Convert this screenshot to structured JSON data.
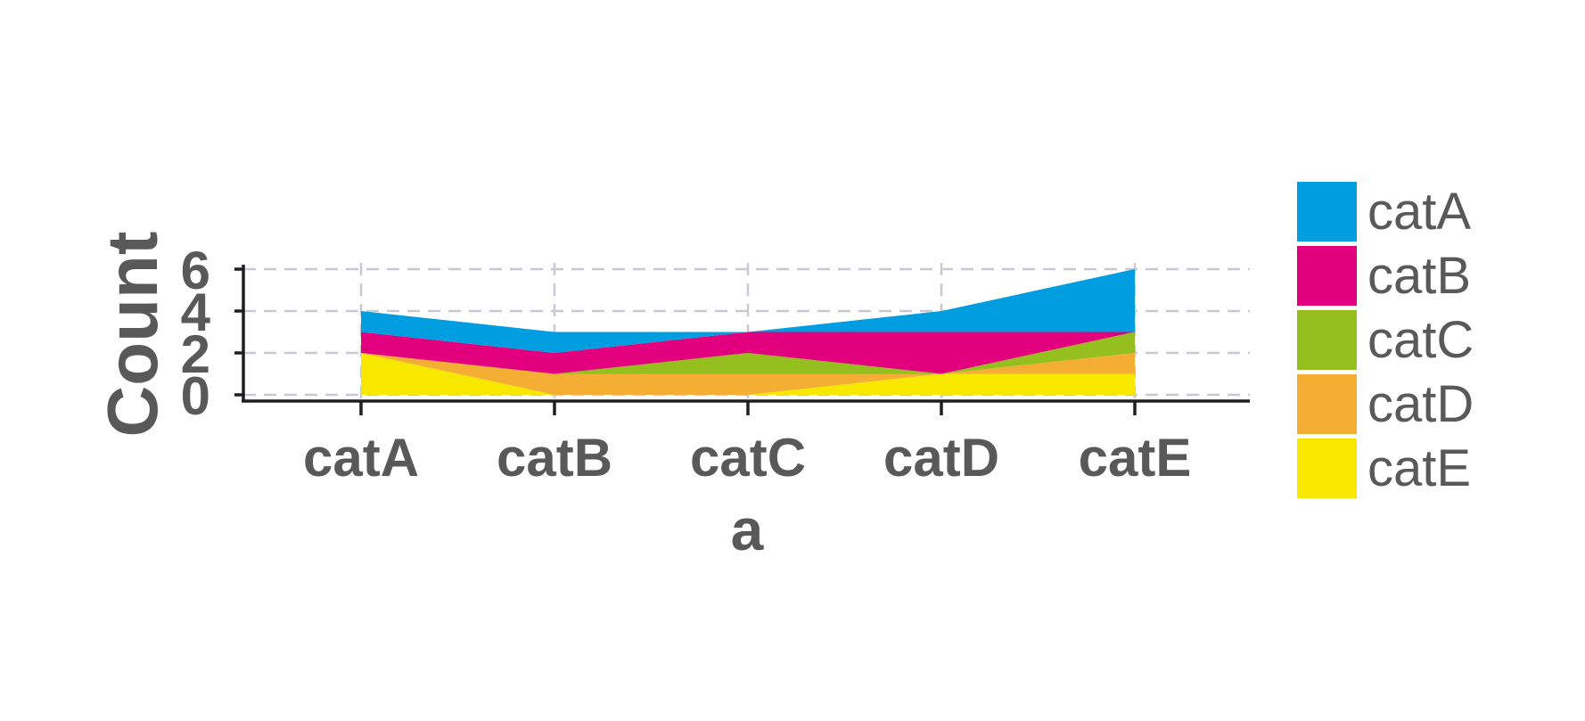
{
  "chart_data": {
    "type": "area",
    "stacked": true,
    "title": "",
    "xlabel": "a",
    "ylabel": "Count",
    "categories": [
      "catA",
      "catB",
      "catC",
      "catD",
      "catE"
    ],
    "y_ticks": [
      0,
      2,
      4,
      6
    ],
    "ylim": [
      0,
      6
    ],
    "grid": true,
    "legend_position": "right",
    "series": [
      {
        "name": "catE",
        "color": "#F8E800",
        "values": [
          2,
          0,
          0,
          1,
          1
        ]
      },
      {
        "name": "catD",
        "color": "#F5AE34",
        "values": [
          0,
          1,
          1,
          0,
          1
        ]
      },
      {
        "name": "catC",
        "color": "#95BF1E",
        "values": [
          0,
          0,
          1,
          0,
          1
        ]
      },
      {
        "name": "catB",
        "color": "#E3007E",
        "values": [
          1,
          1,
          1,
          2,
          0
        ]
      },
      {
        "name": "catA",
        "color": "#009EE0",
        "values": [
          1,
          1,
          0,
          1,
          3
        ]
      }
    ],
    "legend_order": [
      "catA",
      "catB",
      "catC",
      "catD",
      "catE"
    ]
  },
  "colors": {
    "axis": "#1f1f1f",
    "grid": "#c9c9d3",
    "text": "#595959"
  }
}
